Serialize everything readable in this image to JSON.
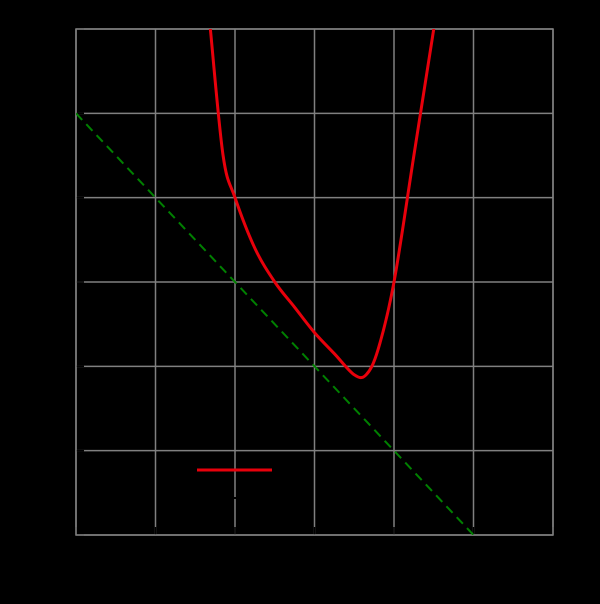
{
  "chart_data": {
    "type": "line",
    "title": "",
    "xlabel": "",
    "ylabel": "",
    "xlim": [
      -3,
      3
    ],
    "ylim": [
      -6,
      0
    ],
    "x_ticks": [
      -3,
      -2,
      -1,
      0,
      1,
      2,
      3
    ],
    "y_ticks": [
      -6,
      -5,
      -4,
      -3,
      -2,
      -1,
      0
    ],
    "grid": true,
    "legend_position": "bottom-left",
    "series": [
      {
        "style": "solid",
        "color": "#e8000b",
        "x": [
          -1.31,
          -1.15,
          -1.0,
          -0.75,
          -0.5,
          -0.25,
          0.0,
          0.25,
          0.5,
          0.65,
          0.8,
          1.0,
          1.25,
          1.5
        ],
        "y": [
          0.0,
          -1.5,
          -2.0,
          -2.6,
          -3.0,
          -3.3,
          -3.6,
          -3.85,
          -4.1,
          -4.1,
          -3.8,
          -3.0,
          -1.5,
          0.0
        ]
      },
      {
        "style": "dashed",
        "color": "#008000",
        "x": [
          -3,
          2
        ],
        "y": [
          -1,
          -6
        ]
      }
    ],
    "colors": {
      "background": "#000000",
      "grid": "#808080",
      "frame": "#808080",
      "curve": "#e8000b",
      "asymptote": "#008000"
    }
  }
}
